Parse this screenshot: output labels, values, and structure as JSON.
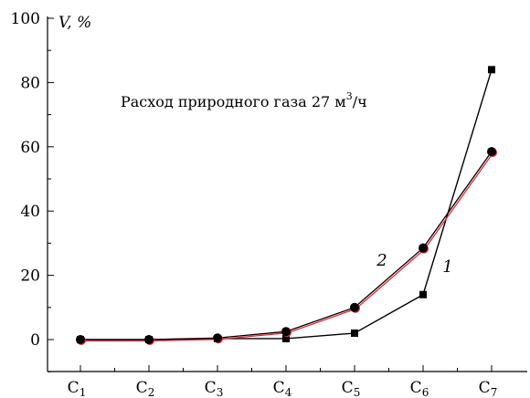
{
  "chart_data": {
    "type": "line",
    "categories": [
      "C1",
      "C2",
      "C3",
      "C4",
      "C5",
      "C6",
      "C7"
    ],
    "category_labels": [
      {
        "main": "C",
        "sub": "1"
      },
      {
        "main": "C",
        "sub": "2"
      },
      {
        "main": "C",
        "sub": "3"
      },
      {
        "main": "C",
        "sub": "4"
      },
      {
        "main": "C",
        "sub": "5"
      },
      {
        "main": "C",
        "sub": "6"
      },
      {
        "main": "C",
        "sub": "7"
      }
    ],
    "ylabel": "V, %",
    "ylim": [
      -10,
      100
    ],
    "yticks": [
      0,
      20,
      40,
      60,
      80,
      100
    ],
    "grid": false,
    "annotation": {
      "text": "Расход природного газа 27 м",
      "sup": "3",
      "suffix": "/ч"
    },
    "series": [
      {
        "label": "1",
        "marker": "square",
        "line_color": "#000000",
        "values": [
          0,
          0,
          0.3,
          0.3,
          2,
          14,
          84
        ]
      },
      {
        "label": "2",
        "marker": "circle",
        "line_color": "#e8283a",
        "values": [
          0,
          0,
          0.5,
          2.5,
          10,
          28.5,
          58.5
        ]
      }
    ]
  }
}
